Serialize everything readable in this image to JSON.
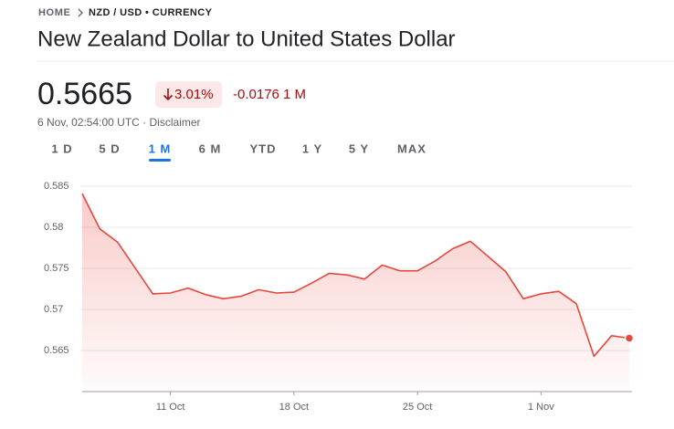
{
  "header": {
    "breadcrumb": [
      "HOME",
      "NZD / USD • CURRENCY"
    ],
    "title": "New Zealand Dollar to United States Dollar"
  },
  "quote": {
    "price": "0.5665",
    "change_percent": "3.01%",
    "change": "-0.0176",
    "period": "1 M",
    "timestamp": "6 Nov, 02:54:00 UTC ·",
    "disclaimer": "Disclaimer"
  },
  "tabs": [
    "1 D",
    "5 D",
    "1 M",
    "6 M",
    "YTD",
    "1 Y",
    "5 Y",
    "MAX"
  ],
  "selected_tab": 2,
  "chart_data": {
    "type": "line",
    "color": "#e8453c",
    "grid": true,
    "x": [
      "6 Oct",
      "7 Oct",
      "8 Oct",
      "10 Oct",
      "11 Oct",
      "12 Oct",
      "13 Oct",
      "14 Oct",
      "15 Oct",
      "16 Oct",
      "17 Oct",
      "18 Oct",
      "19 Oct",
      "20 Oct",
      "21 Oct",
      "22 Oct",
      "23 Oct",
      "24 Oct",
      "25 Oct",
      "26 Oct",
      "27 Oct",
      "28 Oct",
      "30 Oct",
      "31 Oct",
      "1 Nov",
      "2 Nov",
      "3 Nov",
      "4 Nov",
      "5 Nov",
      "6 Nov"
    ],
    "values": [
      0.5841,
      0.5798,
      0.5782,
      0.5719,
      0.572,
      0.5726,
      0.5718,
      0.5713,
      0.5716,
      0.5724,
      0.572,
      0.5721,
      0.5732,
      0.5744,
      0.5742,
      0.5737,
      0.5754,
      0.5747,
      0.5747,
      0.5759,
      0.5774,
      0.5783,
      0.5746,
      0.5713,
      0.5719,
      0.5722,
      0.5707,
      0.5643,
      0.5668,
      0.5665
    ],
    "xlim": [
      "6 Oct",
      "6 Nov"
    ],
    "xticks": [
      "11 Oct",
      "18 Oct",
      "25 Oct",
      "1 Nov"
    ],
    "ylim": [
      0.56,
      0.5855
    ],
    "yticks": [
      0.565,
      0.57,
      0.575,
      0.58,
      0.585
    ]
  }
}
